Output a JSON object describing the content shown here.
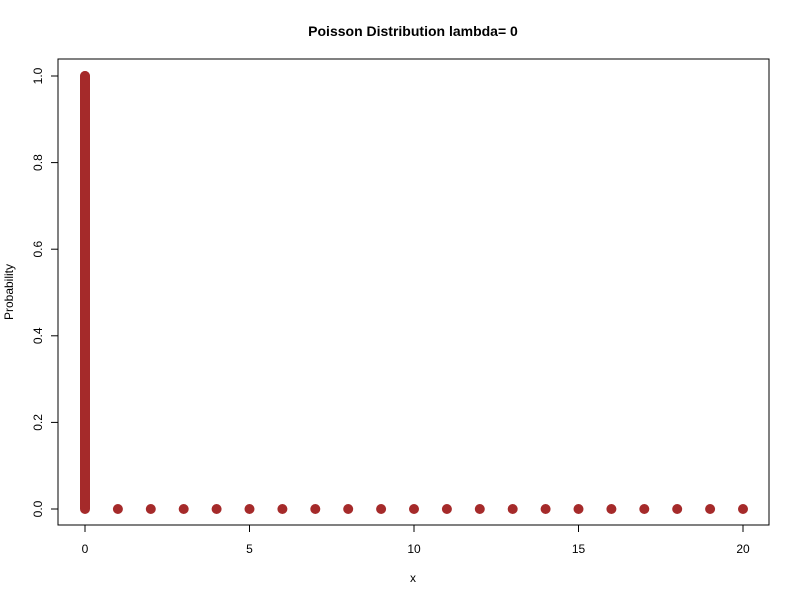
{
  "chart_data": {
    "type": "scatter",
    "title": "Poisson Distribution lambda= 0",
    "xlabel": "x",
    "ylabel": "Probability",
    "xlim": [
      0,
      20
    ],
    "ylim": [
      0,
      1
    ],
    "x_ticks": [
      "0",
      "5",
      "10",
      "15",
      "20"
    ],
    "y_ticks": [
      "0.0",
      "0.2",
      "0.4",
      "0.6",
      "0.8",
      "1.0"
    ],
    "grid": false,
    "legend": "none",
    "point_color": "#a52a2a",
    "series": [
      {
        "points": [
          {
            "x": 0,
            "y": 1.0
          },
          {
            "x": 1,
            "y": 0
          },
          {
            "x": 2,
            "y": 0
          },
          {
            "x": 3,
            "y": 0
          },
          {
            "x": 4,
            "y": 0
          },
          {
            "x": 5,
            "y": 0
          },
          {
            "x": 6,
            "y": 0
          },
          {
            "x": 7,
            "y": 0
          },
          {
            "x": 8,
            "y": 0
          },
          {
            "x": 9,
            "y": 0
          },
          {
            "x": 10,
            "y": 0
          },
          {
            "x": 11,
            "y": 0
          },
          {
            "x": 12,
            "y": 0
          },
          {
            "x": 13,
            "y": 0
          },
          {
            "x": 14,
            "y": 0
          },
          {
            "x": 15,
            "y": 0
          },
          {
            "x": 16,
            "y": 0
          },
          {
            "x": 17,
            "y": 0
          },
          {
            "x": 18,
            "y": 0
          },
          {
            "x": 19,
            "y": 0
          },
          {
            "x": 20,
            "y": 0
          }
        ],
        "spike": {
          "x": 0,
          "y_from": 0,
          "y_to": 1.0
        }
      }
    ]
  }
}
